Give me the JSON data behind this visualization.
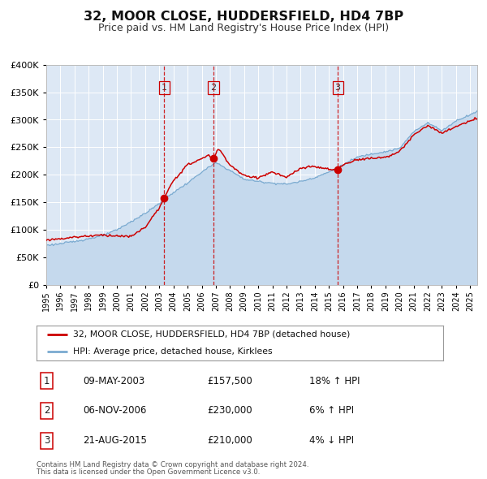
{
  "title": "32, MOOR CLOSE, HUDDERSFIELD, HD4 7BP",
  "subtitle": "Price paid vs. HM Land Registry's House Price Index (HPI)",
  "legend_label_red": "32, MOOR CLOSE, HUDDERSFIELD, HD4 7BP (detached house)",
  "legend_label_blue": "HPI: Average price, detached house, Kirklees",
  "footer_line1": "Contains HM Land Registry data © Crown copyright and database right 2024.",
  "footer_line2": "This data is licensed under the Open Government Licence v3.0.",
  "transactions": [
    {
      "num": 1,
      "date": "09-MAY-2003",
      "price": 157500,
      "year": 2003.35,
      "pct": "18%",
      "dir": "↑"
    },
    {
      "num": 2,
      "date": "06-NOV-2006",
      "price": 230000,
      "year": 2006.84,
      "pct": "6%",
      "dir": "↑"
    },
    {
      "num": 3,
      "date": "21-AUG-2015",
      "price": 210000,
      "year": 2015.63,
      "pct": "4%",
      "dir": "↓"
    }
  ],
  "ylim": [
    0,
    400000
  ],
  "yticks": [
    0,
    50000,
    100000,
    150000,
    200000,
    250000,
    300000,
    350000,
    400000
  ],
  "xlim_start": 1995.0,
  "xlim_end": 2025.5,
  "background_color": "#dde8f5",
  "plot_bg_color": "#dde8f5",
  "grid_color": "#ffffff",
  "red_color": "#cc0000",
  "blue_color": "#7aaad0",
  "blue_fill_color": "#c5d9ed",
  "vline_color": "#cc0000",
  "hpi_keypoints_x": [
    1995,
    1996,
    1997,
    1998,
    1999,
    2000,
    2001,
    2002,
    2003,
    2004,
    2005,
    2006,
    2007,
    2008,
    2009,
    2010,
    2011,
    2012,
    2013,
    2014,
    2015,
    2016,
    2017,
    2018,
    2019,
    2020,
    2021,
    2022,
    2023,
    2024,
    2025.5
  ],
  "hpi_keypoints_y": [
    72000,
    75000,
    79000,
    84000,
    90000,
    100000,
    115000,
    130000,
    148000,
    168000,
    185000,
    205000,
    222000,
    208000,
    192000,
    188000,
    185000,
    183000,
    188000,
    195000,
    205000,
    218000,
    232000,
    238000,
    242000,
    248000,
    278000,
    295000,
    280000,
    298000,
    315000
  ],
  "prop_keypoints_x": [
    1995,
    1996,
    1997,
    1998,
    1999,
    2000,
    2001,
    2002,
    2003.0,
    2003.35,
    2004,
    2005,
    2006.5,
    2006.84,
    2007.2,
    2008,
    2009,
    2010,
    2011,
    2012,
    2013,
    2014,
    2015.4,
    2015.63,
    2016,
    2017,
    2018,
    2019,
    2020,
    2021,
    2022,
    2023,
    2024,
    2025.5
  ],
  "prop_keypoints_y": [
    82000,
    84000,
    87000,
    89000,
    91000,
    89000,
    88000,
    105000,
    140000,
    157500,
    190000,
    218000,
    235000,
    230000,
    248000,
    218000,
    198000,
    195000,
    205000,
    195000,
    212000,
    215000,
    208000,
    210000,
    218000,
    228000,
    230000,
    232000,
    242000,
    272000,
    290000,
    275000,
    288000,
    302000
  ],
  "trans_table": [
    [
      1,
      "09-MAY-2003",
      "£157,500",
      "18% ↑ HPI"
    ],
    [
      2,
      "06-NOV-2006",
      "£230,000",
      "6% ↑ HPI"
    ],
    [
      3,
      "21-AUG-2015",
      "£210,000",
      "4% ↓ HPI"
    ]
  ]
}
